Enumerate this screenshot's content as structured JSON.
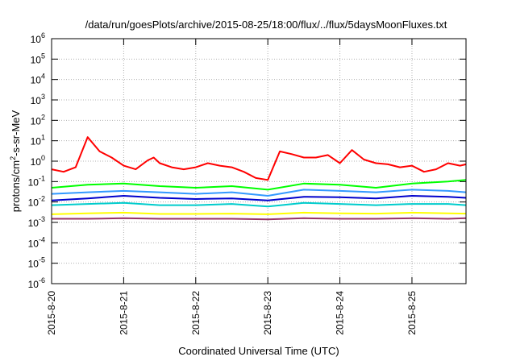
{
  "chart_data": {
    "type": "line",
    "title": "/data/run/goesPlots/archive/2015-08-25/18:00/flux/../flux/5daysMoonFluxes.txt",
    "xlabel": "Coordinated Universal Time (UTC)",
    "ylabel": {
      "base": "protons/cm",
      "sup": "2",
      "rest": "-s-sr-MeV"
    },
    "y_scale": "log",
    "ylim": [
      1e-06,
      1000000.0
    ],
    "y_ticks": [
      {
        "value": 1e-06,
        "base": "10",
        "exp": "-6"
      },
      {
        "value": 1e-05,
        "base": "10",
        "exp": "-5"
      },
      {
        "value": 0.0001,
        "base": "10",
        "exp": "-4"
      },
      {
        "value": 0.001,
        "base": "10",
        "exp": "-3"
      },
      {
        "value": 0.01,
        "base": "10",
        "exp": "-2"
      },
      {
        "value": 0.1,
        "base": "10",
        "exp": "-1"
      },
      {
        "value": 1,
        "base": "10",
        "exp": "0"
      },
      {
        "value": 10,
        "base": "10",
        "exp": "1"
      },
      {
        "value": 100,
        "base": "10",
        "exp": "2"
      },
      {
        "value": 1000,
        "base": "10",
        "exp": "3"
      },
      {
        "value": 10000,
        "base": "10",
        "exp": "4"
      },
      {
        "value": 100000,
        "base": "10",
        "exp": "5"
      },
      {
        "value": 1000000,
        "base": "10",
        "exp": "6"
      }
    ],
    "xlim": [
      "2015-08-20T00:00",
      "2015-08-25T18:00"
    ],
    "x_ticks": [
      "2015-8-20",
      "2015-8-21",
      "2015-8-22",
      "2015-8-23",
      "2015-8-24",
      "2015-8-25"
    ],
    "grid": true,
    "legend": "none",
    "series": [
      {
        "color": "#ff0000",
        "x": [
          "2015-08-20T00:00",
          "2015-08-20T04:00",
          "2015-08-20T08:00",
          "2015-08-20T12:00",
          "2015-08-20T16:00",
          "2015-08-20T20:00",
          "2015-08-21T00:00",
          "2015-08-21T04:00",
          "2015-08-21T08:00",
          "2015-08-21T10:00",
          "2015-08-21T12:00",
          "2015-08-21T16:00",
          "2015-08-21T20:00",
          "2015-08-22T00:00",
          "2015-08-22T04:00",
          "2015-08-22T08:00",
          "2015-08-22T12:00",
          "2015-08-22T16:00",
          "2015-08-22T20:00",
          "2015-08-23T00:00",
          "2015-08-23T04:00",
          "2015-08-23T08:00",
          "2015-08-23T12:00",
          "2015-08-23T16:00",
          "2015-08-23T20:00",
          "2015-08-24T00:00",
          "2015-08-24T04:00",
          "2015-08-24T08:00",
          "2015-08-24T12:00",
          "2015-08-24T16:00",
          "2015-08-24T20:00",
          "2015-08-25T00:00",
          "2015-08-25T04:00",
          "2015-08-25T08:00",
          "2015-08-25T12:00",
          "2015-08-25T16:00",
          "2015-08-25T18:00"
        ],
        "y": [
          0.4,
          0.3,
          0.5,
          15,
          3,
          1.5,
          0.6,
          0.4,
          1.1,
          1.5,
          0.8,
          0.5,
          0.4,
          0.5,
          0.8,
          0.6,
          0.5,
          0.3,
          0.15,
          0.12,
          3,
          2.2,
          1.5,
          1.5,
          2,
          0.8,
          3.5,
          1.2,
          0.8,
          0.7,
          0.5,
          0.6,
          0.3,
          0.4,
          0.8,
          0.6,
          0.7
        ]
      },
      {
        "color": "#00ff00",
        "x": [
          "2015-08-20T00:00",
          "2015-08-20T12:00",
          "2015-08-21T00:00",
          "2015-08-21T12:00",
          "2015-08-22T00:00",
          "2015-08-22T12:00",
          "2015-08-23T00:00",
          "2015-08-23T12:00",
          "2015-08-24T00:00",
          "2015-08-24T12:00",
          "2015-08-25T00:00",
          "2015-08-25T12:00",
          "2015-08-25T18:00"
        ],
        "y": [
          0.05,
          0.07,
          0.08,
          0.06,
          0.05,
          0.06,
          0.04,
          0.08,
          0.07,
          0.05,
          0.08,
          0.1,
          0.12
        ]
      },
      {
        "color": "#3399ff",
        "x": [
          "2015-08-20T00:00",
          "2015-08-20T12:00",
          "2015-08-21T00:00",
          "2015-08-21T12:00",
          "2015-08-22T00:00",
          "2015-08-22T12:00",
          "2015-08-23T00:00",
          "2015-08-23T12:00",
          "2015-08-24T00:00",
          "2015-08-24T12:00",
          "2015-08-25T00:00",
          "2015-08-25T12:00",
          "2015-08-25T18:00"
        ],
        "y": [
          0.025,
          0.03,
          0.035,
          0.03,
          0.025,
          0.03,
          0.02,
          0.04,
          0.035,
          0.03,
          0.04,
          0.035,
          0.03
        ]
      },
      {
        "color": "#0000cc",
        "x": [
          "2015-08-20T00:00",
          "2015-08-20T12:00",
          "2015-08-21T00:00",
          "2015-08-21T12:00",
          "2015-08-22T00:00",
          "2015-08-22T12:00",
          "2015-08-23T00:00",
          "2015-08-23T12:00",
          "2015-08-24T00:00",
          "2015-08-24T12:00",
          "2015-08-25T00:00",
          "2015-08-25T12:00",
          "2015-08-25T18:00"
        ],
        "y": [
          0.012,
          0.015,
          0.02,
          0.016,
          0.014,
          0.015,
          0.012,
          0.018,
          0.017,
          0.015,
          0.02,
          0.018,
          0.016
        ]
      },
      {
        "color": "#00cccc",
        "x": [
          "2015-08-20T00:00",
          "2015-08-20T12:00",
          "2015-08-21T00:00",
          "2015-08-21T12:00",
          "2015-08-22T00:00",
          "2015-08-22T12:00",
          "2015-08-23T00:00",
          "2015-08-23T12:00",
          "2015-08-24T00:00",
          "2015-08-24T12:00",
          "2015-08-25T00:00",
          "2015-08-25T12:00",
          "2015-08-25T18:00"
        ],
        "y": [
          0.007,
          0.008,
          0.009,
          0.007,
          0.007,
          0.008,
          0.006,
          0.009,
          0.008,
          0.007,
          0.008,
          0.008,
          0.007
        ]
      },
      {
        "color": "#ffff00",
        "x": [
          "2015-08-20T00:00",
          "2015-08-20T12:00",
          "2015-08-21T00:00",
          "2015-08-21T12:00",
          "2015-08-22T00:00",
          "2015-08-22T12:00",
          "2015-08-23T00:00",
          "2015-08-23T12:00",
          "2015-08-24T00:00",
          "2015-08-24T12:00",
          "2015-08-25T00:00",
          "2015-08-25T12:00",
          "2015-08-25T18:00"
        ],
        "y": [
          0.0025,
          0.0028,
          0.003,
          0.0026,
          0.0026,
          0.0027,
          0.0025,
          0.003,
          0.0028,
          0.0027,
          0.003,
          0.0028,
          0.0027
        ]
      },
      {
        "color": "#993366",
        "x": [
          "2015-08-20T00:00",
          "2015-08-20T12:00",
          "2015-08-21T00:00",
          "2015-08-21T12:00",
          "2015-08-22T00:00",
          "2015-08-22T12:00",
          "2015-08-23T00:00",
          "2015-08-23T12:00",
          "2015-08-24T00:00",
          "2015-08-24T12:00",
          "2015-08-25T00:00",
          "2015-08-25T12:00",
          "2015-08-25T18:00"
        ],
        "y": [
          0.0015,
          0.0015,
          0.0016,
          0.0015,
          0.0015,
          0.0015,
          0.0014,
          0.0016,
          0.0015,
          0.0015,
          0.0016,
          0.0015,
          0.0016
        ]
      }
    ]
  }
}
